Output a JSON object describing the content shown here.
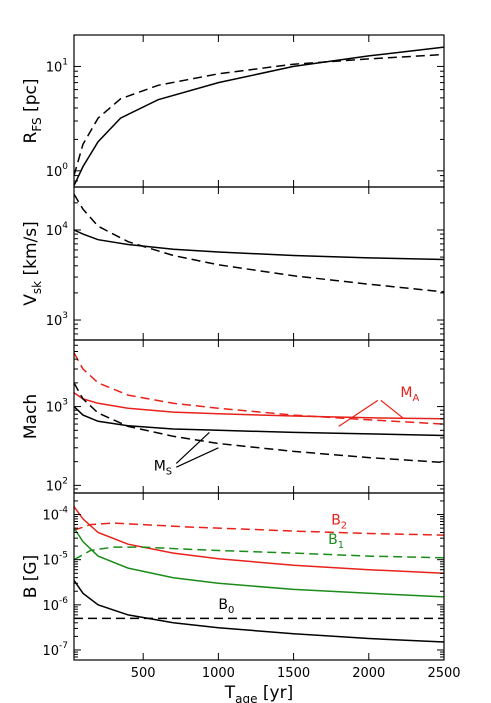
{
  "chart_data": [
    {
      "type": "line",
      "id": "rfs",
      "ylabel_main": "R",
      "ylabel_sub": "FS",
      "ylabel_unit": " [pc]",
      "yscale": "log",
      "ylim": [
        0.7,
        20
      ],
      "yticks": [
        {
          "v": 1,
          "m": "10",
          "e": "0"
        },
        {
          "v": 10,
          "m": "10",
          "e": "1"
        }
      ],
      "series": [
        {
          "style": "solid",
          "color": "#000000",
          "x": [
            40,
            100,
            200,
            350,
            600,
            1000,
            1500,
            2000,
            2500
          ],
          "y": [
            0.72,
            1.1,
            1.9,
            3.2,
            4.8,
            7.0,
            10.0,
            12.6,
            15.3
          ]
        },
        {
          "style": "dashed",
          "color": "#000000",
          "x": [
            40,
            100,
            200,
            350,
            600,
            1000,
            1500,
            2000,
            2500
          ],
          "y": [
            0.9,
            1.8,
            3.2,
            4.9,
            6.6,
            8.5,
            10.5,
            11.8,
            13.0
          ]
        }
      ]
    },
    {
      "type": "line",
      "id": "vsk",
      "ylabel_main": "V",
      "ylabel_sub": "sk",
      "ylabel_unit": " [km/s]",
      "yscale": "log",
      "ylim": [
        600,
        30000
      ],
      "yticks": [
        {
          "v": 1000,
          "m": "10",
          "e": "3"
        },
        {
          "v": 10000,
          "m": "10",
          "e": "4"
        }
      ],
      "series": [
        {
          "style": "solid",
          "color": "#000000",
          "x": [
            40,
            100,
            200,
            400,
            700,
            1000,
            1500,
            2000,
            2500
          ],
          "y": [
            10000,
            9000,
            7800,
            6900,
            6100,
            5700,
            5200,
            4900,
            4700
          ]
        },
        {
          "style": "dashed",
          "color": "#000000",
          "x": [
            40,
            100,
            200,
            400,
            700,
            1000,
            1500,
            2000,
            2500
          ],
          "y": [
            25000,
            17000,
            11000,
            7400,
            5200,
            4100,
            3100,
            2500,
            2050
          ]
        }
      ]
    },
    {
      "type": "line",
      "id": "mach",
      "ylabel_main": "Mach",
      "ylabel_sub": "",
      "ylabel_unit": "",
      "yscale": "log",
      "ylim": [
        80,
        7000
      ],
      "yticks": [
        {
          "v": 100,
          "m": "10",
          "e": "2"
        },
        {
          "v": 1000,
          "m": "10",
          "e": "3"
        }
      ],
      "series": [
        {
          "name": "MA",
          "style": "dashed",
          "color": "#e8211a",
          "x": [
            40,
            100,
            200,
            400,
            700,
            1000,
            1500,
            2000,
            2500
          ],
          "y": [
            4800,
            3000,
            2000,
            1400,
            1100,
            950,
            780,
            680,
            600
          ]
        },
        {
          "name": "MA",
          "style": "solid",
          "color": "#e8211a",
          "x": [
            40,
            100,
            200,
            400,
            700,
            1000,
            1500,
            2000,
            2500
          ],
          "y": [
            1500,
            1250,
            1100,
            950,
            850,
            810,
            760,
            720,
            700
          ]
        },
        {
          "name": "MS",
          "style": "solid",
          "color": "#000000",
          "x": [
            40,
            100,
            200,
            400,
            700,
            1000,
            1500,
            2000,
            2500
          ],
          "y": [
            1000,
            780,
            650,
            570,
            520,
            500,
            470,
            450,
            430
          ]
        },
        {
          "name": "MS",
          "style": "dashed",
          "color": "#000000",
          "x": [
            40,
            100,
            200,
            400,
            700,
            1000,
            1500,
            2000,
            2500
          ],
          "y": [
            2000,
            1250,
            830,
            560,
            420,
            340,
            270,
            225,
            195
          ]
        }
      ],
      "annotations": [
        {
          "main": "M",
          "sub": "A",
          "color": "#e8211a",
          "x": 2210,
          "y": 1330
        },
        {
          "main": "M",
          "sub": "S",
          "color": "#000000",
          "x": 570,
          "y": 155
        }
      ],
      "leaders": [
        {
          "color": "#e8211a",
          "from": [
            2060,
            1200
          ],
          "to": [
            1800,
            560
          ]
        },
        {
          "color": "#e8211a",
          "from": [
            2080,
            1200
          ],
          "to": [
            2230,
            710
          ]
        },
        {
          "color": "#000000",
          "from": [
            720,
            190
          ],
          "to": [
            940,
            470
          ]
        },
        {
          "color": "#000000",
          "from": [
            720,
            170
          ],
          "to": [
            1000,
            300
          ]
        }
      ]
    },
    {
      "type": "line",
      "id": "bfield",
      "ylabel_main": "B [G]",
      "ylabel_sub": "",
      "ylabel_unit": "",
      "yscale": "log",
      "ylim": [
        6e-08,
        0.0003
      ],
      "yticks": [
        {
          "v": 1e-07,
          "m": "10",
          "e": "-7"
        },
        {
          "v": 1e-06,
          "m": "10",
          "e": "-6"
        },
        {
          "v": 1e-05,
          "m": "10",
          "e": "-5"
        },
        {
          "v": 0.0001,
          "m": "10",
          "e": "-4"
        }
      ],
      "series": [
        {
          "name": "B2",
          "style": "dashed",
          "color": "#e8211a",
          "x": [
            40,
            150,
            300,
            500,
            800,
            1000,
            1500,
            2000,
            2500
          ],
          "y": [
            4.5e-05,
            6e-05,
            6.5e-05,
            6e-05,
            5.3e-05,
            5e-05,
            4.3e-05,
            3.8e-05,
            3.5e-05
          ]
        },
        {
          "name": "B2",
          "style": "solid",
          "color": "#e8211a",
          "x": [
            40,
            100,
            200,
            400,
            700,
            1000,
            1500,
            2000,
            2500
          ],
          "y": [
            0.00015,
            8e-05,
            4e-05,
            2.2e-05,
            1.4e-05,
            1.05e-05,
            7.5e-06,
            6e-06,
            5e-06
          ]
        },
        {
          "name": "B1",
          "style": "dashed",
          "color": "#1a8c1a",
          "x": [
            40,
            150,
            300,
            500,
            800,
            1000,
            1500,
            2000,
            2500
          ],
          "y": [
            1e-05,
            1.6e-05,
            1.9e-05,
            1.9e-05,
            1.7e-05,
            1.6e-05,
            1.4e-05,
            1.2e-05,
            1.1e-05
          ]
        },
        {
          "name": "B1",
          "style": "solid",
          "color": "#1a8c1a",
          "x": [
            40,
            100,
            200,
            400,
            700,
            1000,
            1500,
            2000,
            2500
          ],
          "y": [
            5e-05,
            2.5e-05,
            1.2e-05,
            6.5e-06,
            4e-06,
            3e-06,
            2.2e-06,
            1.8e-06,
            1.5e-06
          ]
        },
        {
          "name": "B0",
          "style": "dashed",
          "color": "#000000",
          "x": [
            40,
            2500
          ],
          "y": [
            5e-07,
            5e-07
          ]
        },
        {
          "name": "B0",
          "style": "solid",
          "color": "#000000",
          "x": [
            40,
            100,
            200,
            400,
            700,
            1000,
            1500,
            2000,
            2500
          ],
          "y": [
            3.5e-06,
            1.8e-06,
            1e-06,
            6e-07,
            4e-07,
            3.1e-07,
            2.3e-07,
            1.8e-07,
            1.5e-07
          ]
        }
      ],
      "annotations": [
        {
          "main": "B",
          "sub": "2",
          "color": "#e8211a",
          "x": 1750,
          "y": 6e-05
        },
        {
          "main": "B",
          "sub": "1",
          "color": "#1a8c1a",
          "x": 1730,
          "y": 2.2e-05
        },
        {
          "main": "B",
          "sub": "0",
          "color": "#000000",
          "x": 1000,
          "y": 8e-07
        }
      ]
    }
  ],
  "x_axis": {
    "label_main": "T",
    "label_sub": "age",
    "label_unit": " [yr]",
    "xlim": [
      40,
      2500
    ],
    "ticks": [
      500,
      1000,
      1500,
      2000,
      2500
    ],
    "tick_labels": [
      "500",
      "1000",
      "1500",
      "2000",
      "2500"
    ]
  }
}
